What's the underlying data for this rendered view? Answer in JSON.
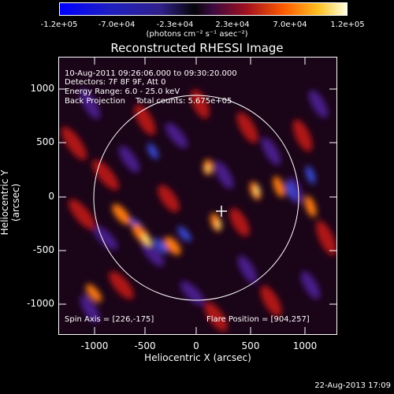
{
  "colorbar": {
    "ticks": [
      "-1.2e+05",
      "-7.0e+04",
      "-2.3e+04",
      "2.3e+04",
      "7.0e+04",
      "1.2e+05"
    ],
    "units": "(photons cm⁻² s⁻¹ asec⁻²)"
  },
  "plot": {
    "title": "Reconstructed RHESSI Image",
    "info": {
      "time_range": "10-Aug-2011 09:26:06.000 to 09:30:20.000",
      "detectors": "Detectors: 7F 8F 9F, Att 0",
      "energy": "Energy Range: 6.0 - 25.0 keV",
      "method": "Back Projection",
      "counts": "Total counts: 5.675e+05",
      "spin_axis": "Spin Axis = [226,-175]",
      "flare_position": "Flare Position = [904,257]"
    },
    "xlabel": "Heliocentric X (arcsec)",
    "ylabel": "Heliocentric Y (arcsec)",
    "xticks": [
      "-1000",
      "-500",
      "0",
      "500",
      "1000"
    ],
    "yticks": [
      "1000",
      "500",
      "0",
      "-500",
      "-1000"
    ]
  },
  "footer": {
    "date": "22-Aug-2013 17:09"
  }
}
